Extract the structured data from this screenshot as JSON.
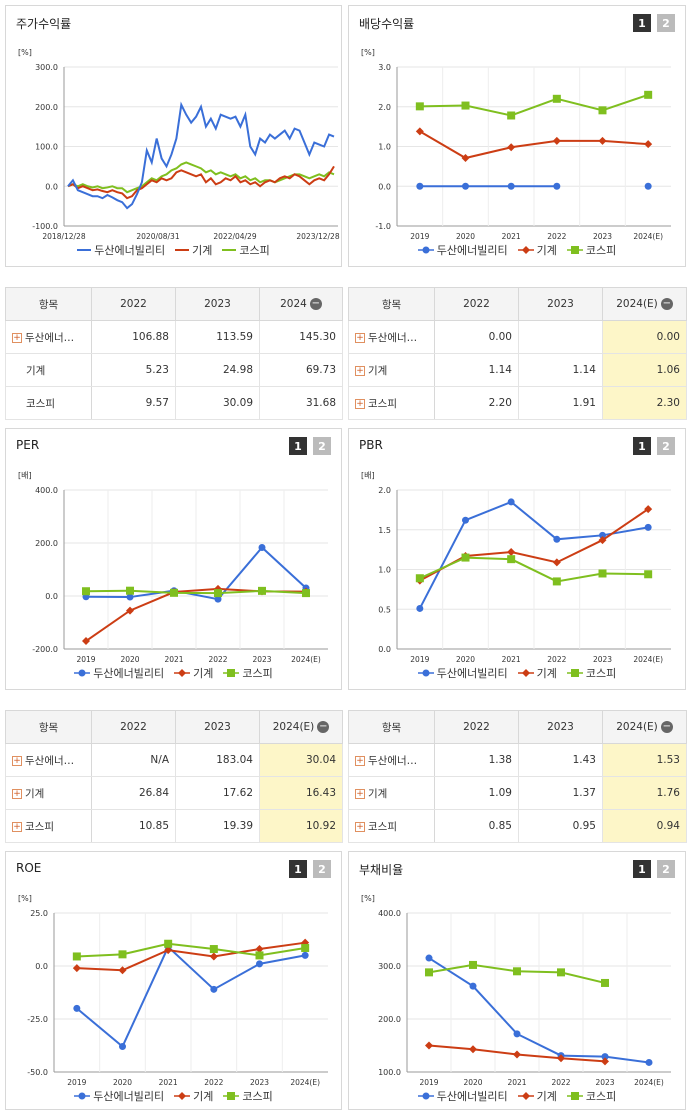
{
  "colors": {
    "blue": "#3a6fd8",
    "red": "#cc3d14",
    "green": "#7fbf1f"
  },
  "legend": [
    "두산에너빌리티",
    "기계",
    "코스피"
  ],
  "buttons": [
    "1",
    "2"
  ],
  "panels": {
    "stock": {
      "title": "주가수익률"
    },
    "dividend": {
      "title": "배당수익률"
    },
    "per": {
      "title": "PER"
    },
    "pbr": {
      "title": "PBR"
    },
    "roe": {
      "title": "ROE"
    },
    "debt": {
      "title": "부채비율"
    }
  },
  "tables": {
    "stock": {
      "header": [
        "항목",
        "2022",
        "2023",
        "2024"
      ],
      "rows": [
        {
          "name": "두산에너…",
          "v": [
            "106.88",
            "113.59",
            "145.30"
          ]
        },
        {
          "name": "기계",
          "v": [
            "5.23",
            "24.98",
            "69.73"
          ]
        },
        {
          "name": "코스피",
          "v": [
            "9.57",
            "30.09",
            "31.68"
          ]
        }
      ]
    },
    "dividend": {
      "header": [
        "항목",
        "2022",
        "2023",
        "2024(E)"
      ],
      "rows": [
        {
          "name": "두산에너…",
          "v": [
            "0.00",
            "",
            "0.00"
          ]
        },
        {
          "name": "기계",
          "v": [
            "1.14",
            "1.14",
            "1.06"
          ]
        },
        {
          "name": "코스피",
          "v": [
            "2.20",
            "1.91",
            "2.30"
          ]
        }
      ]
    },
    "per": {
      "header": [
        "항목",
        "2022",
        "2023",
        "2024(E)"
      ],
      "rows": [
        {
          "name": "두산에너…",
          "v": [
            "N/A",
            "183.04",
            "30.04"
          ]
        },
        {
          "name": "기계",
          "v": [
            "26.84",
            "17.62",
            "16.43"
          ]
        },
        {
          "name": "코스피",
          "v": [
            "10.85",
            "19.39",
            "10.92"
          ]
        }
      ]
    },
    "pbr": {
      "header": [
        "항목",
        "2022",
        "2023",
        "2024(E)"
      ],
      "rows": [
        {
          "name": "두산에너…",
          "v": [
            "1.38",
            "1.43",
            "1.53"
          ]
        },
        {
          "name": "기계",
          "v": [
            "1.09",
            "1.37",
            "1.76"
          ]
        },
        {
          "name": "코스피",
          "v": [
            "0.85",
            "0.95",
            "0.94"
          ]
        }
      ]
    }
  },
  "chart_data": [
    {
      "id": "stock",
      "type": "line",
      "title": "주가수익률",
      "unit": "[%]",
      "ylim": [
        -100,
        300
      ],
      "yticks": [
        "300.0",
        "200.0",
        "100.0",
        "0.0",
        "-100.0"
      ],
      "xticks": [
        "2018/12/28",
        "2020/08/31",
        "2022/04/29",
        "2023/12/28"
      ],
      "series": [
        {
          "name": "두산에너빌리티",
          "values": [
            0,
            15,
            -10,
            -15,
            -20,
            -25,
            -25,
            -30,
            -22,
            -28,
            -35,
            -40,
            -55,
            -45,
            -20,
            10,
            90,
            60,
            120,
            70,
            50,
            80,
            120,
            205,
            180,
            160,
            175,
            200,
            150,
            170,
            145,
            180,
            175,
            170,
            175,
            150,
            180,
            100,
            80,
            120,
            110,
            130,
            120,
            130,
            140,
            120,
            145,
            140,
            110,
            80,
            110,
            105,
            100,
            130,
            125
          ]
        },
        {
          "name": "기계",
          "values": [
            0,
            5,
            -5,
            0,
            -5,
            -10,
            -8,
            -12,
            -15,
            -10,
            -15,
            -18,
            -30,
            -25,
            -10,
            -5,
            5,
            15,
            10,
            20,
            15,
            20,
            35,
            40,
            35,
            30,
            25,
            30,
            10,
            20,
            5,
            10,
            20,
            15,
            25,
            10,
            15,
            5,
            10,
            0,
            10,
            15,
            10,
            20,
            25,
            20,
            30,
            25,
            15,
            5,
            15,
            20,
            15,
            30,
            50
          ]
        },
        {
          "name": "코스피",
          "values": [
            0,
            5,
            0,
            5,
            0,
            -3,
            0,
            -5,
            -3,
            0,
            -5,
            -5,
            -15,
            -10,
            -5,
            0,
            10,
            20,
            15,
            25,
            30,
            40,
            45,
            55,
            60,
            55,
            50,
            45,
            35,
            40,
            30,
            35,
            30,
            25,
            30,
            20,
            25,
            15,
            20,
            10,
            15,
            15,
            10,
            15,
            20,
            25,
            30,
            30,
            25,
            20,
            25,
            30,
            25,
            35,
            30
          ]
        }
      ]
    },
    {
      "id": "dividend",
      "type": "line",
      "title": "배당수익률",
      "unit": "[%]",
      "ylim": [
        -1,
        3
      ],
      "yticks": [
        "3.0",
        "2.0",
        "1.0",
        "0.0",
        "-1.0"
      ],
      "categories": [
        "2019",
        "2020",
        "2021",
        "2022",
        "2023",
        "2024(E)"
      ],
      "series": [
        {
          "name": "두산에너빌리티",
          "values": [
            0,
            0,
            0,
            0,
            null,
            0
          ]
        },
        {
          "name": "기계",
          "values": [
            1.38,
            0.71,
            0.98,
            1.14,
            1.14,
            1.06
          ]
        },
        {
          "name": "코스피",
          "values": [
            2.01,
            2.03,
            1.78,
            2.2,
            1.91,
            2.3
          ]
        }
      ]
    },
    {
      "id": "per",
      "type": "line",
      "title": "PER",
      "unit": "[배]",
      "ylim": [
        -200,
        400
      ],
      "yticks": [
        "400.0",
        "200.0",
        "0.0",
        "-200.0"
      ],
      "categories": [
        "2019",
        "2020",
        "2021",
        "2022",
        "2023",
        "2024(E)"
      ],
      "series": [
        {
          "name": "두산에너빌리티",
          "values": [
            -3,
            -4,
            20,
            -12,
            183.04,
            30.04
          ]
        },
        {
          "name": "기계",
          "values": [
            -170,
            -55,
            15,
            26.84,
            17.62,
            16.43
          ]
        },
        {
          "name": "코스피",
          "values": [
            18,
            20,
            12,
            10.85,
            19.39,
            10.92
          ]
        }
      ]
    },
    {
      "id": "pbr",
      "type": "line",
      "title": "PBR",
      "unit": "[배]",
      "ylim": [
        0,
        2
      ],
      "yticks": [
        "2.0",
        "1.5",
        "1.0",
        "0.5",
        "0.0"
      ],
      "categories": [
        "2019",
        "2020",
        "2021",
        "2022",
        "2023",
        "2024(E)"
      ],
      "series": [
        {
          "name": "두산에너빌리티",
          "values": [
            0.51,
            1.62,
            1.85,
            1.38,
            1.43,
            1.53
          ]
        },
        {
          "name": "기계",
          "values": [
            0.86,
            1.17,
            1.22,
            1.09,
            1.37,
            1.76
          ]
        },
        {
          "name": "코스피",
          "values": [
            0.89,
            1.15,
            1.13,
            0.85,
            0.95,
            0.94
          ]
        }
      ]
    },
    {
      "id": "roe",
      "type": "line",
      "title": "ROE",
      "unit": "[%]",
      "ylim": [
        -50,
        25
      ],
      "yticks": [
        "25.0",
        "0.0",
        "-25.0",
        "-50.0"
      ],
      "categories": [
        "2019",
        "2020",
        "2021",
        "2022",
        "2023",
        "2024(E)"
      ],
      "series": [
        {
          "name": "두산에너빌리티",
          "values": [
            -20,
            -38,
            9,
            -11,
            1,
            5
          ]
        },
        {
          "name": "기계",
          "values": [
            -1,
            -2,
            7.5,
            4.5,
            8,
            11
          ]
        },
        {
          "name": "코스피",
          "values": [
            4.5,
            5.5,
            10.5,
            8,
            5,
            8.5
          ]
        }
      ]
    },
    {
      "id": "debt",
      "type": "line",
      "title": "부채비율",
      "unit": "[%]",
      "ylim": [
        100,
        400
      ],
      "yticks": [
        "400.0",
        "300.0",
        "200.0",
        "100.0"
      ],
      "categories": [
        "2019",
        "2020",
        "2021",
        "2022",
        "2023",
        "2024(E)"
      ],
      "series": [
        {
          "name": "두산에너빌리티",
          "values": [
            315,
            262,
            172,
            131,
            129,
            118
          ]
        },
        {
          "name": "기계",
          "values": [
            150,
            143,
            133,
            126,
            120,
            null
          ]
        },
        {
          "name": "코스피",
          "values": [
            288,
            302,
            290,
            288,
            268,
            null
          ]
        }
      ]
    }
  ]
}
